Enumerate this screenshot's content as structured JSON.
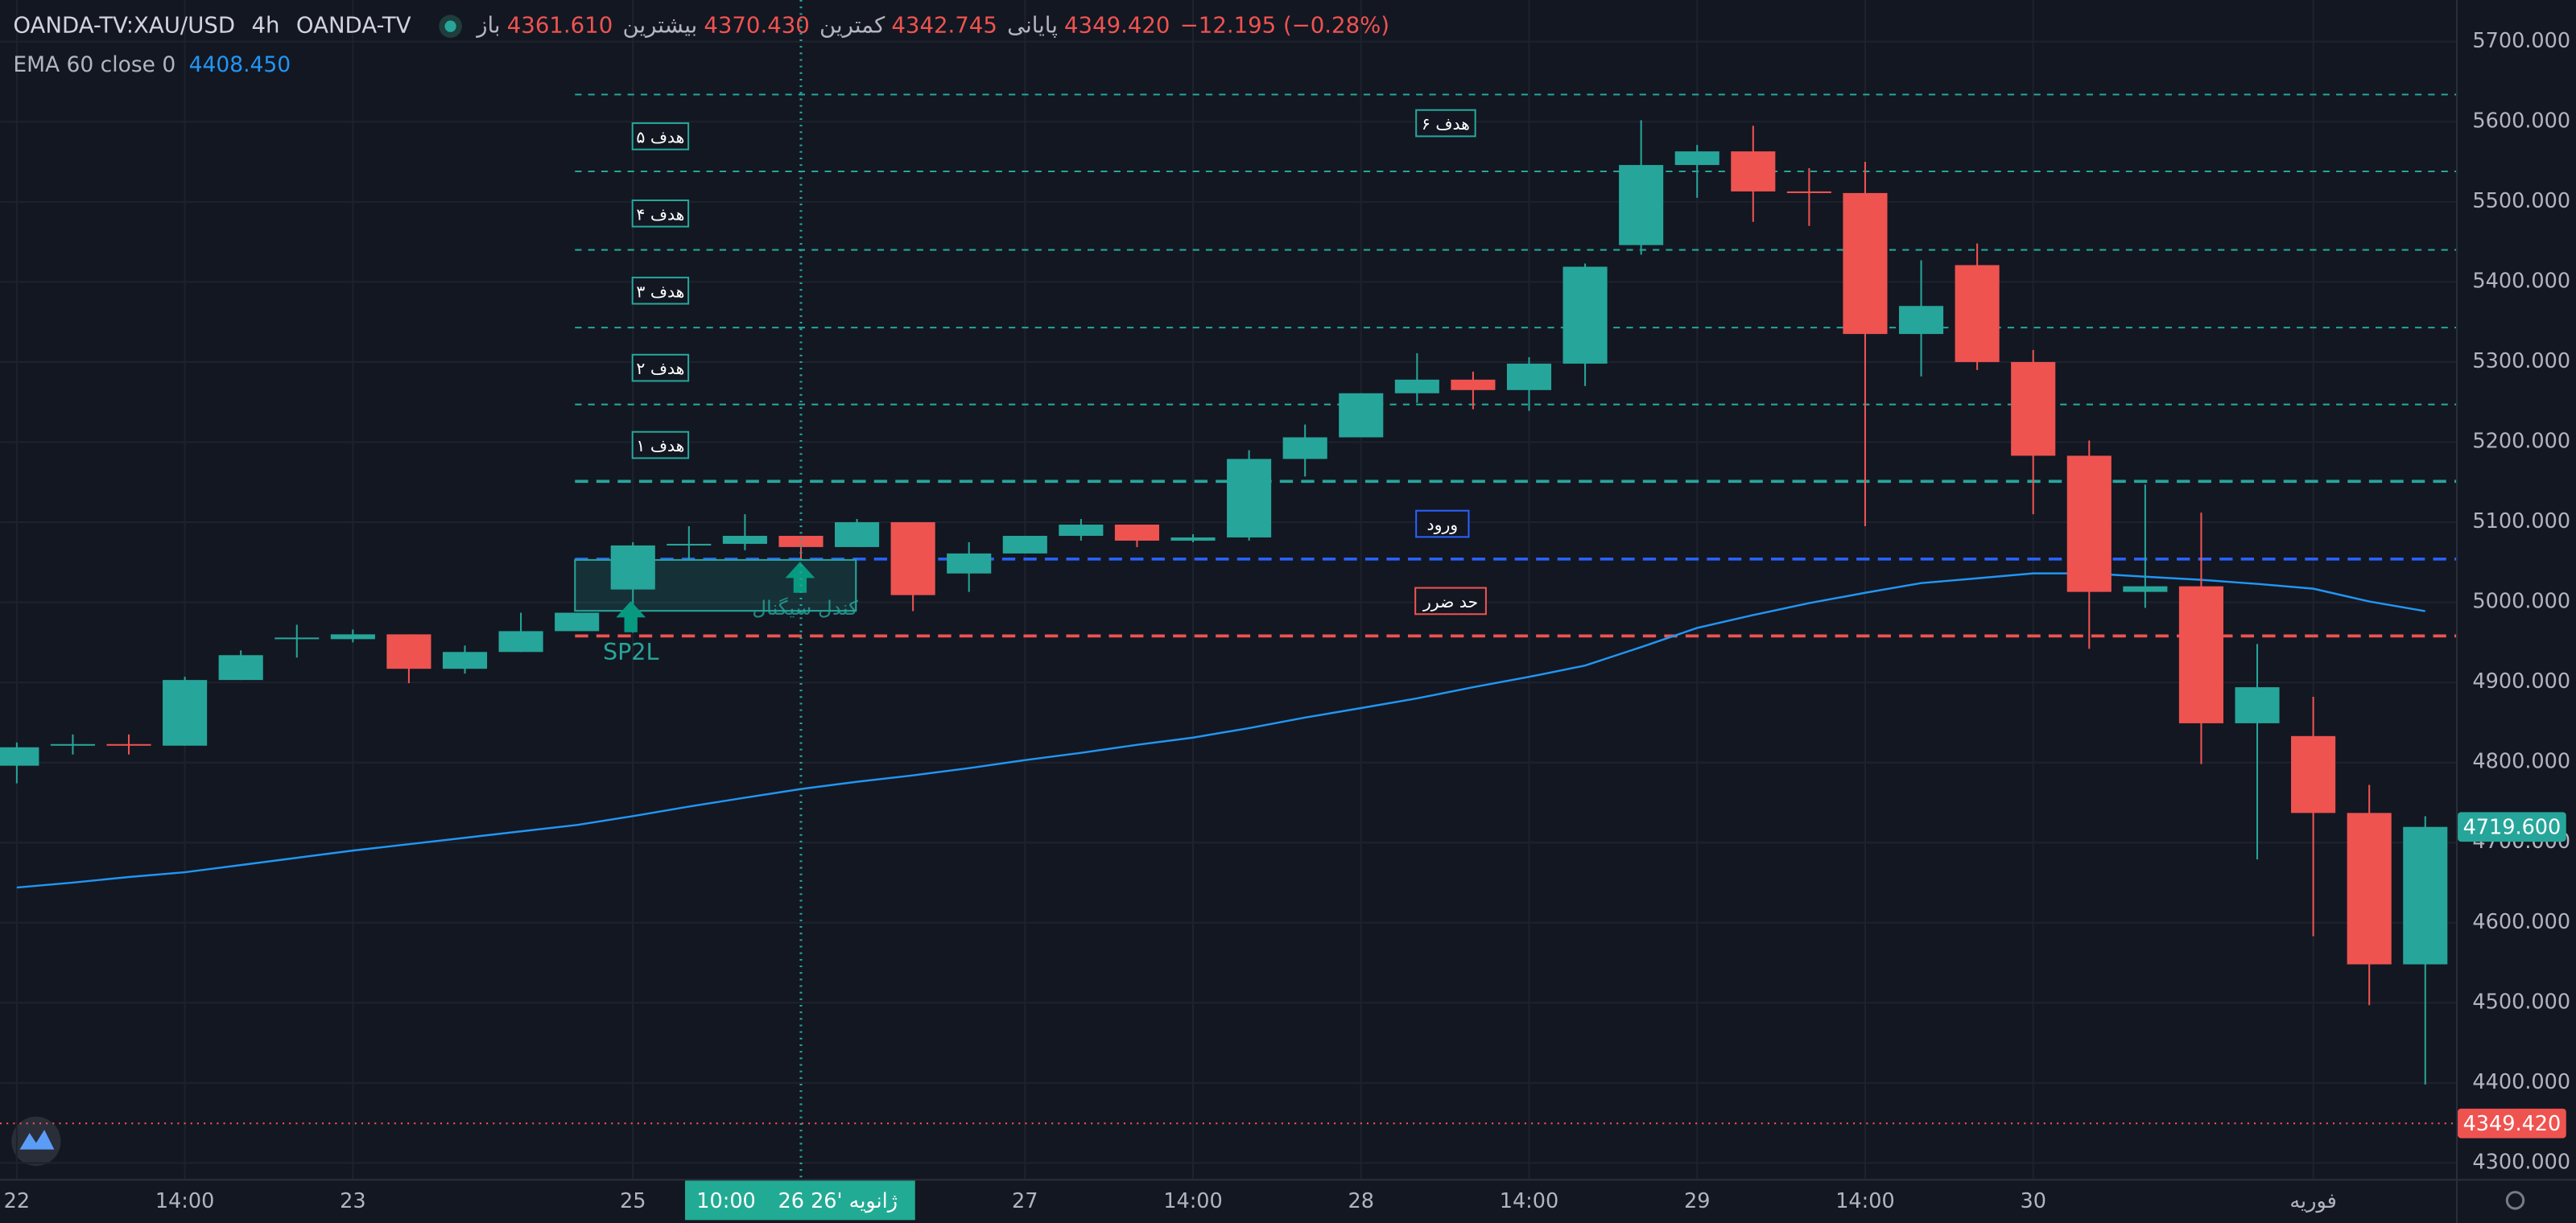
{
  "chart_data": {
    "type": "candlestick",
    "header": {
      "symbol": "OANDA-TV:XAU/USD",
      "interval": "4h",
      "source": "OANDA-TV",
      "ohlc": [
        {
          "label": "باز",
          "value": "4361.610"
        },
        {
          "label": "بیشترین",
          "value": "4370.430"
        },
        {
          "label": "کمترین",
          "value": "4342.745"
        },
        {
          "label": "پایانی",
          "value": "4349.420"
        }
      ],
      "change": "−12.195 (−0.28%)"
    },
    "up_color": "#26a69a",
    "down_color": "#ef5350",
    "open": [
      4796,
      4822,
      4823,
      4821,
      4903,
      4955,
      4954,
      4960,
      4917,
      4938,
      4964,
      5016,
      5072,
      5073,
      5083,
      5069,
      5100,
      5036,
      5061,
      5083,
      5097,
      5077,
      5081,
      5179,
      5206,
      5261,
      5278,
      5265,
      5298,
      5446,
      5546,
      5563,
      5513,
      5511,
      5335,
      5421,
      5300,
      5183,
      5013,
      5020,
      4849,
      4833,
      4737,
      4548
    ],
    "high": [
      4825,
      4835,
      4835,
      4907,
      4940,
      4972,
      4966,
      4960,
      4946,
      4987,
      4987,
      5075,
      5095,
      5110,
      5083,
      5104,
      5100,
      5075,
      5083,
      5104,
      5097,
      5085,
      5190,
      5222,
      5261,
      5311,
      5288,
      5306,
      5423,
      5602,
      5571,
      5595,
      5542,
      5550,
      5427,
      5448,
      5315,
      5202,
      5147,
      5112,
      4948,
      4882,
      4772,
      4733
    ],
    "low": [
      4774,
      4810,
      4810,
      4821,
      4903,
      4931,
      4950,
      4899,
      4911,
      4938,
      4964,
      4962,
      5054,
      5065,
      5054,
      5069,
      4989,
      5013,
      5061,
      5077,
      5069,
      5075,
      5077,
      5157,
      5206,
      5249,
      5241,
      5239,
      5270,
      5434,
      5505,
      5475,
      5470,
      5095,
      5282,
      5290,
      5110,
      4942,
      4993,
      4798,
      4679,
      4583,
      4497,
      4398
    ],
    "close": [
      4819,
      4823,
      4821,
      4903,
      4934,
      4956,
      4960,
      4917,
      4938,
      4964,
      4987,
      5071,
      5073,
      5083,
      5069,
      5100,
      5009,
      5061,
      5083,
      5097,
      5077,
      5081,
      5179,
      5206,
      5261,
      5278,
      5265,
      5298,
      5419,
      5546,
      5563,
      5513,
      5511,
      5335,
      5370,
      5300,
      5183,
      5013,
      5020,
      4849,
      4894,
      4737,
      4548,
      4719.6
    ],
    "indicator": {
      "name": "EMA 60 close 0",
      "legend_value": "4408.450",
      "color": "#2196f3",
      "values": [
        4644,
        4650,
        4657,
        4663,
        4672,
        4681,
        4690,
        4698,
        4706,
        4714,
        4722,
        4733,
        4745,
        4756,
        4767,
        4776,
        4784,
        4793,
        4803,
        4812,
        4822,
        4831,
        4843,
        4856,
        4868,
        4880,
        4894,
        4907,
        4921,
        4944,
        4968,
        4984,
        4999,
        5012,
        5024,
        5030,
        5036,
        5036,
        5032,
        5028,
        5023,
        5017,
        5001,
        4989
      ]
    },
    "xlim": [
      -0.3,
      43.55
    ],
    "xticks": [
      {
        "value": 0,
        "label": "22"
      },
      {
        "value": 3,
        "label": "14:00"
      },
      {
        "value": 6,
        "label": "23"
      },
      {
        "value": 11,
        "label": "25"
      },
      {
        "value": 18,
        "label": "27"
      },
      {
        "value": 21,
        "label": "14:00"
      },
      {
        "value": 24,
        "label": "28"
      },
      {
        "value": 27,
        "label": "14:00"
      },
      {
        "value": 30,
        "label": "29"
      },
      {
        "value": 33,
        "label": "14:00"
      },
      {
        "value": 36,
        "label": "30"
      },
      {
        "value": 41,
        "label": "فوریه"
      }
    ],
    "ylim": [
      4280,
      5752
    ],
    "yticks": [
      {
        "value": 4300,
        "label": "4300.000"
      },
      {
        "value": 4400,
        "label": "4400.000"
      },
      {
        "value": 4500,
        "label": "4500.000"
      },
      {
        "value": 4600,
        "label": "4600.000"
      },
      {
        "value": 4700,
        "label": "4700.000"
      },
      {
        "value": 4800,
        "label": "4800.000"
      },
      {
        "value": 4900,
        "label": "4900.000"
      },
      {
        "value": 5000,
        "label": "5000.000"
      },
      {
        "value": 5100,
        "label": "5100.000"
      },
      {
        "value": 5200,
        "label": "5200.000"
      },
      {
        "value": 5300,
        "label": "5300.000"
      },
      {
        "value": 5400,
        "label": "5400.000"
      },
      {
        "value": 5500,
        "label": "5500.000"
      },
      {
        "value": 5600,
        "label": "5600.000"
      },
      {
        "value": 5700,
        "label": "5700.000"
      }
    ],
    "grid": true,
    "levels": [
      {
        "value": 5634,
        "color": "#26a69a"
      },
      {
        "value": 5538,
        "color": "#26a69a"
      },
      {
        "value": 5440,
        "color": "#26a69a"
      },
      {
        "value": 5343,
        "color": "#26a69a"
      },
      {
        "value": 5247,
        "color": "#26a69a"
      },
      {
        "value": 5151,
        "color": "#26a69a"
      },
      {
        "value": 5054,
        "color": "#2962ff"
      },
      {
        "value": 4958,
        "color": "#ef5350"
      }
    ],
    "annotations": [
      "هدف ۶",
      "هدف ۵",
      "هدف ۴",
      "هدف ۳",
      "هدف ۲",
      "هدف ۱",
      "ورود",
      "حد ضرر",
      "کندل سیگنال",
      "SP2L"
    ],
    "price_tags": [
      {
        "value": 4719.6,
        "label": "4719.600",
        "color": "#26a69a"
      },
      {
        "value": 4349.42,
        "label": "4349.420",
        "color": "#ef5350"
      }
    ],
    "crosshair": {
      "value": 14,
      "date": "26 ژانویه '26",
      "time": "10:00"
    }
  }
}
